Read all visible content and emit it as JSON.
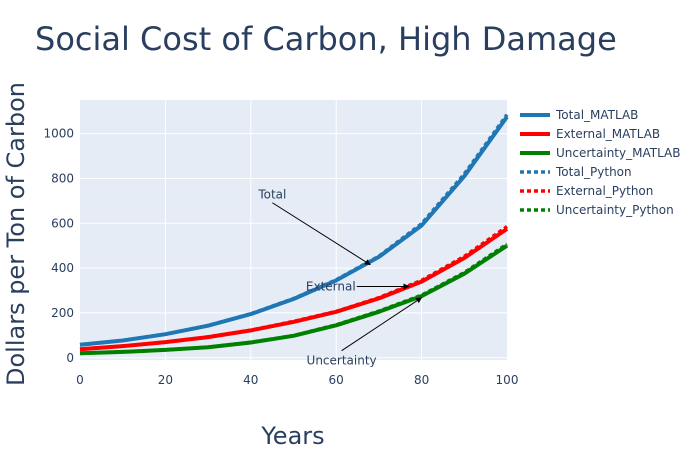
{
  "chart_data": {
    "type": "line",
    "title": "Social Cost of Carbon, High Damage",
    "xlabel": "Years",
    "ylabel": "Dollars per Ton of Carbon",
    "xlim": [
      0,
      100
    ],
    "ylim": [
      -10,
      1150
    ],
    "x_ticks": [
      0,
      20,
      40,
      60,
      80,
      100
    ],
    "y_ticks": [
      0,
      200,
      400,
      600,
      800,
      1000
    ],
    "x": [
      0,
      10,
      20,
      30,
      40,
      50,
      60,
      70,
      80,
      90,
      100
    ],
    "grid": true,
    "legend_position": "right",
    "series": [
      {
        "name": "Total_MATLAB",
        "color": "#1f77b4",
        "dash": "solid",
        "values": [
          58,
          77,
          105,
          143,
          195,
          262,
          345,
          450,
          590,
          810,
          1075
        ]
      },
      {
        "name": "External_MATLAB",
        "color": "#ff0000",
        "dash": "solid",
        "values": [
          38,
          52,
          70,
          92,
          122,
          160,
          205,
          265,
          340,
          445,
          575
        ]
      },
      {
        "name": "Uncertainty_MATLAB",
        "color": "#008000",
        "dash": "solid",
        "values": [
          20,
          26,
          35,
          47,
          68,
          98,
          145,
          205,
          275,
          375,
          500
        ]
      },
      {
        "name": "Total_Python",
        "color": "#1f77b4",
        "dash": "dot",
        "values": [
          58,
          77,
          105,
          144,
          196,
          264,
          348,
          453,
          598,
          820,
          1085
        ]
      },
      {
        "name": "External_Python",
        "color": "#ff0000",
        "dash": "dot",
        "values": [
          38,
          52,
          70,
          93,
          123,
          162,
          207,
          268,
          345,
          452,
          585
        ]
      },
      {
        "name": "Uncertainty_Python",
        "color": "#008000",
        "dash": "dot",
        "values": [
          20,
          26,
          35,
          47,
          69,
          99,
          147,
          208,
          279,
          380,
          507
        ]
      }
    ],
    "annotations": [
      {
        "text": "Total",
        "x": 68,
        "y": 415
      },
      {
        "text": "External",
        "x": 77,
        "y": 318
      },
      {
        "text": "Uncertainty",
        "x": 80,
        "y": 268
      }
    ]
  }
}
